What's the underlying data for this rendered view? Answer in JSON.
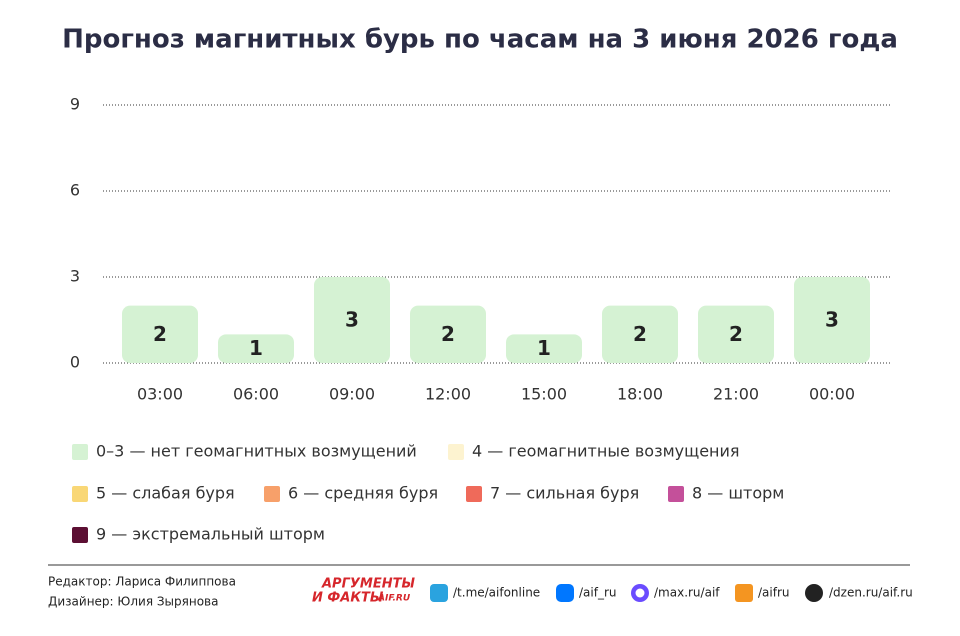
{
  "chart_data": {
    "type": "bar",
    "title": "Прогноз магнитных бурь по часам на 3 июня 2026 года",
    "categories": [
      "03:00",
      "06:00",
      "09:00",
      "12:00",
      "15:00",
      "18:00",
      "21:00",
      "00:00"
    ],
    "values": [
      2,
      1,
      3,
      2,
      1,
      2,
      2,
      3
    ],
    "color": "#d5f2d3",
    "ylim": [
      0,
      9
    ],
    "yticks": [
      0,
      3,
      6,
      9
    ],
    "grid": true,
    "legend": [
      {
        "name": "0–3 — нет геомагнитных возмущений",
        "color": "#d5f2d3"
      },
      {
        "name": "4 — геомагнитные возмущения",
        "color": "#fdf3d0"
      },
      {
        "name": "5 — слабая буря",
        "color": "#f9d776"
      },
      {
        "name": "6 — средняя буря",
        "color": "#f7a06a"
      },
      {
        "name": "7 — сильная буря",
        "color": "#ef6a5a"
      },
      {
        "name": "8 — шторм",
        "color": "#c4509a"
      },
      {
        "name": "9 — экстремальный шторм",
        "color": "#5c0f33"
      }
    ]
  },
  "footer": {
    "editor": "Редактор: Лариса Филиппова",
    "designer": "Дизайнер: Юлия Зырянова",
    "logo": [
      "АРГУМЕНТЫ",
      "И ФАКТЫ",
      "AIF.RU"
    ],
    "links": [
      "/t.me/aifonline",
      "/aif_ru",
      "/max.ru/aif",
      "/aifru",
      "/dzen.ru/aif.ru"
    ]
  }
}
